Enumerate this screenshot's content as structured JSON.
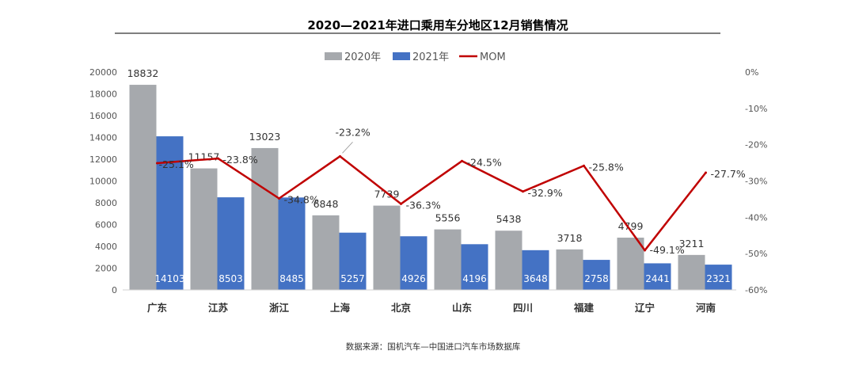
{
  "chart_data": {
    "type": "bar",
    "title": "2020—2021年进口乘用车分地区12月销售情况",
    "categories": [
      "广东",
      "江苏",
      "浙江",
      "上海",
      "北京",
      "山东",
      "四川",
      "福建",
      "辽宁",
      "河南"
    ],
    "series": [
      {
        "name": "2020年",
        "type": "bar",
        "color": "#a6a9ad",
        "values": [
          18832,
          11157,
          13023,
          6848,
          7739,
          5556,
          5438,
          3718,
          4799,
          3211
        ],
        "labels": [
          "18832",
          "11157",
          "13023",
          "6848",
          "7739",
          "5556",
          "5438",
          "3718",
          "4799",
          "3211"
        ]
      },
      {
        "name": "2021年",
        "type": "bar",
        "color": "#4472c4",
        "values": [
          14103,
          8503,
          8485,
          5257,
          4926,
          4196,
          3648,
          2758,
          2441,
          2321
        ],
        "labels": [
          "14103",
          "8503",
          "8485",
          "5257",
          "4926",
          "4196",
          "3648",
          "2758",
          "2441",
          "2321"
        ]
      },
      {
        "name": "MOM",
        "type": "line",
        "axis": "right",
        "color": "#c00000",
        "values": [
          -25.1,
          -23.8,
          -34.8,
          -23.2,
          -36.3,
          -24.5,
          -32.9,
          -25.8,
          -49.1,
          -27.7
        ],
        "labels": [
          "-25.1%",
          "-23.8%",
          "-34.8%",
          "-23.2%",
          "-36.3%",
          "-24.5%",
          "-32.9%",
          "-25.8%",
          "-49.1%",
          "-27.7%"
        ]
      }
    ],
    "y_left": {
      "min": 0,
      "max": 20000,
      "step": 2000,
      "ticks": [
        "0",
        "2000",
        "4000",
        "6000",
        "8000",
        "10000",
        "12000",
        "14000",
        "16000",
        "18000",
        "20000"
      ]
    },
    "y_right": {
      "min": -60,
      "max": 0,
      "step": 10,
      "ticks": [
        "0%",
        "-10%",
        "-20%",
        "-30%",
        "-40%",
        "-50%",
        "-60%"
      ]
    },
    "legend": "top-center",
    "source": "数据来源：国机汽车—中国进口汽车市场数据库"
  }
}
